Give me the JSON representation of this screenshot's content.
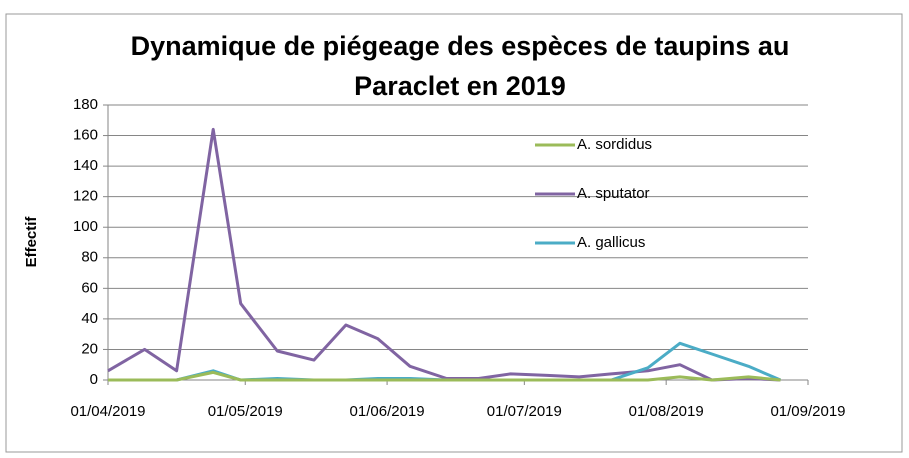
{
  "chart_data": {
    "type": "line",
    "title": "Dynamique de piégeage des espèces de taupins au Paraclet en 2019",
    "y_label": "Effectif",
    "x": [
      "01/04/2019",
      "09/04/2019",
      "16/04/2019",
      "24/04/2019",
      "30/04/2019",
      "08/05/2019",
      "16/05/2019",
      "23/05/2019",
      "30/05/2019",
      "06/06/2019",
      "14/06/2019",
      "21/06/2019",
      "28/06/2019",
      "06/07/2019",
      "13/07/2019",
      "20/07/2019",
      "28/07/2019",
      "04/08/2019",
      "11/08/2019",
      "19/08/2019",
      "26/08/2019"
    ],
    "series": [
      {
        "name": "A. sordidus",
        "color": "#9bbb59",
        "values": [
          0,
          0,
          0,
          5,
          0,
          0,
          0,
          0,
          0,
          0,
          0,
          0,
          0,
          0,
          0,
          0,
          0,
          2,
          0,
          2,
          0
        ]
      },
      {
        "name": "A. sputator",
        "color": "#8064a2",
        "values": [
          6,
          20,
          6,
          164,
          50,
          19,
          13,
          36,
          27,
          9,
          1,
          1,
          4,
          3,
          2,
          4,
          6,
          10,
          0,
          1,
          0
        ]
      },
      {
        "name": "A. gallicus",
        "color": "#4bacc6",
        "values": [
          0,
          0,
          0,
          6,
          0,
          1,
          0,
          0,
          1,
          1,
          0,
          0,
          0,
          0,
          0,
          0,
          8,
          24,
          17,
          9,
          0
        ]
      }
    ],
    "xlim": [
      "01/04/2019",
      "01/09/2019"
    ],
    "xticks": [
      "01/04/2019",
      "01/05/2019",
      "01/06/2019",
      "01/07/2019",
      "01/08/2019",
      "01/09/2019"
    ],
    "ylim": [
      0,
      180
    ],
    "yticks": [
      0,
      20,
      40,
      60,
      80,
      100,
      120,
      140,
      160,
      180
    ],
    "grid": true,
    "legend": "upper right"
  }
}
